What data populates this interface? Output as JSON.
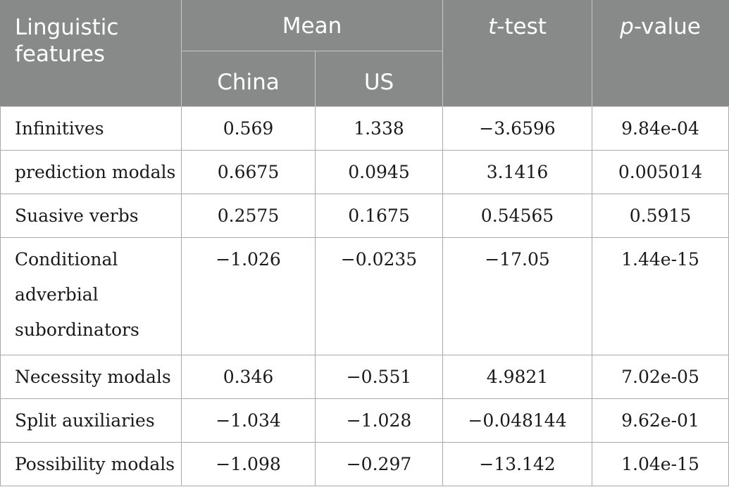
{
  "header": {
    "features_line1": "Linguistic",
    "features_line2": "features",
    "mean": "Mean",
    "china": "China",
    "us": "US",
    "ttest_italic": "t",
    "ttest_rest": "-test",
    "pvalue_italic": "p",
    "pvalue_rest": "-value"
  },
  "rows": [
    {
      "feature": "Infinitives",
      "china": "0.569",
      "us": "1.338",
      "t": "−3.6596",
      "p": "9.84e-04"
    },
    {
      "feature": "prediction modals",
      "china": "0.6675",
      "us": "0.0945",
      "t": "3.1416",
      "p": "0.005014"
    },
    {
      "feature": "Suasive verbs",
      "china": "0.2575",
      "us": "0.1675",
      "t": "0.54565",
      "p": "0.5915"
    },
    {
      "feature_lines": [
        "Conditional",
        "adverbial",
        "subordinators"
      ],
      "china": "−1.026",
      "us": "−0.0235",
      "t": "−17.05",
      "p": "1.44e-15"
    },
    {
      "feature": "Necessity modals",
      "china": "0.346",
      "us": "−0.551",
      "t": "4.9821",
      "p": "7.02e-05"
    },
    {
      "feature": "Split auxiliaries",
      "china": "−1.034",
      "us": "−1.028",
      "t": "−0.048144",
      "p": "9.62e-01"
    },
    {
      "feature": "Possibility modals",
      "china": "−1.098",
      "us": "−0.297",
      "t": "−13.142",
      "p": "1.04e-15"
    }
  ]
}
